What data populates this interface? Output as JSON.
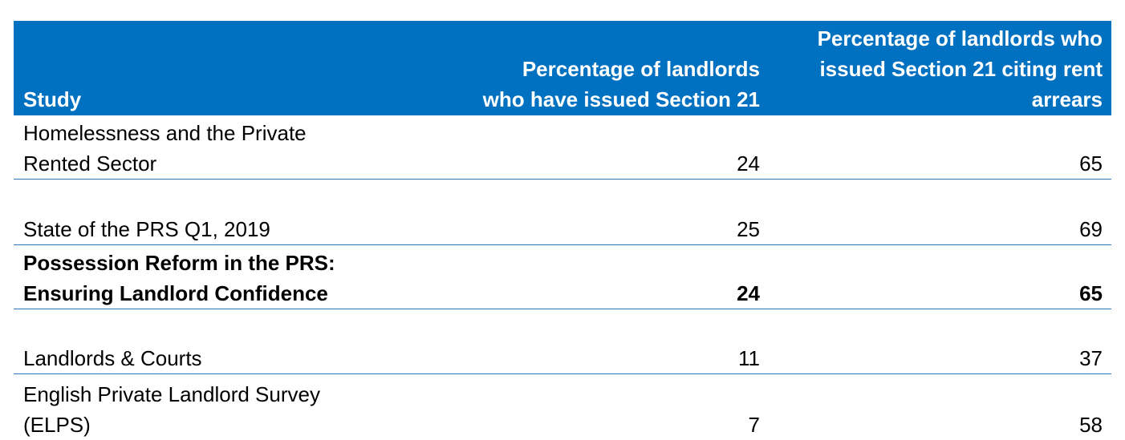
{
  "table": {
    "headers": [
      "Study",
      "Percentage of landlords who have issued Section 21",
      "Percentage of landlords who issued Section 21 citing rent arrears"
    ],
    "rows": [
      {
        "study": "Homelessness and the Private Rented Sector",
        "issued": "24",
        "rent_arrears": "65",
        "bold": false
      },
      {
        "study": "State of the PRS Q1, 2019",
        "issued": "25",
        "rent_arrears": "69",
        "bold": false
      },
      {
        "study": "Possession Reform in the PRS: Ensuring Landlord Confidence",
        "issued": "24",
        "rent_arrears": "65",
        "bold": true
      },
      {
        "study": "Landlords & Courts",
        "issued": "11",
        "rent_arrears": "37",
        "bold": false
      },
      {
        "study": "English Private Landlord Survey (ELPS)",
        "issued": "7",
        "rent_arrears": "58",
        "bold": false
      }
    ]
  },
  "colors": {
    "header_background": "#0070C0",
    "header_text": "#FFFFFF",
    "row_border": "#2E75B6"
  }
}
